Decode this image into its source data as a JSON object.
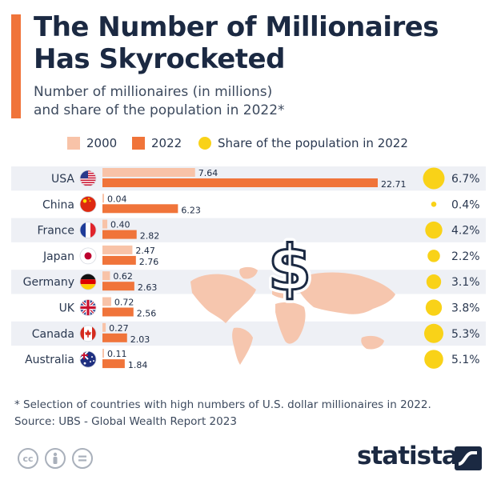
{
  "header": {
    "title_line1": "The Number of Millionaires",
    "title_line2": "Has Skyrocketed",
    "subtitle_line1": "Number of millionaires (in millions)",
    "subtitle_line2": "and share of the population in 2022*"
  },
  "legend": {
    "item_2000": "2000",
    "item_2022": "2022",
    "item_share": "Share of the population in 2022"
  },
  "colors": {
    "accent": "#f0743a",
    "bar_2000": "#f8c3a8",
    "bar_2022": "#f0743a",
    "share_dot": "#f9d218",
    "row_band": "#eef0f5",
    "map": "#f6c6ae",
    "title": "#1b2942"
  },
  "chart_data": {
    "type": "bar",
    "orientation": "horizontal",
    "categories": [
      "USA",
      "China",
      "France",
      "Japan",
      "Germany",
      "UK",
      "Canada",
      "Australia"
    ],
    "series": [
      {
        "name": "2000",
        "values": [
          7.64,
          0.04,
          0.4,
          2.47,
          0.62,
          0.72,
          0.27,
          0.11
        ],
        "labels": [
          "7.64",
          "0.04",
          "0.40",
          "2.47",
          "0.62",
          "0.72",
          "0.27",
          "0.11"
        ]
      },
      {
        "name": "2022",
        "values": [
          22.71,
          6.23,
          2.82,
          2.76,
          2.63,
          2.56,
          2.03,
          1.84
        ],
        "labels": [
          "22.71",
          "6.23",
          "2.82",
          "2.76",
          "2.63",
          "2.56",
          "2.03",
          "1.84"
        ]
      }
    ],
    "share_population_2022": {
      "name": "Share of the population in 2022",
      "values": [
        6.7,
        0.4,
        4.2,
        2.2,
        3.1,
        3.8,
        5.3,
        5.1
      ],
      "labels": [
        "6.7%",
        "0.4%",
        "4.2%",
        "2.2%",
        "3.1%",
        "3.8%",
        "5.3%",
        "5.1%"
      ]
    },
    "flag_icons": [
      "us-flag-icon",
      "china-flag-icon",
      "france-flag-icon",
      "japan-flag-icon",
      "germany-flag-icon",
      "uk-flag-icon",
      "canada-flag-icon",
      "australia-flag-icon"
    ],
    "legend_position": "top",
    "grid": false
  },
  "footer": {
    "footnote_line1": "* Selection of countries with high numbers of U.S. dollar millionaires in 2022.",
    "footnote_line2": "Source: UBS - Global Wealth Report 2023",
    "brand": "statista",
    "license_icons": [
      "cc-icon",
      "attribution-icon",
      "no-derivatives-icon"
    ]
  }
}
